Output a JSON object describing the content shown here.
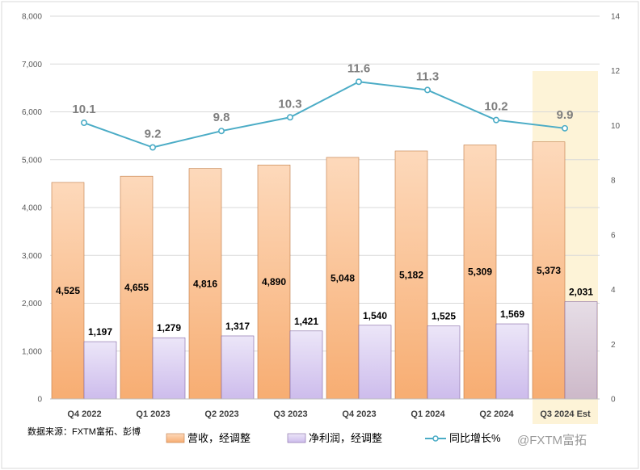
{
  "chart_data": {
    "type": "bar",
    "categories": [
      "Q4 2022",
      "Q1 2023",
      "Q2 2023",
      "Q3 2023",
      "Q4 2023",
      "Q1 2024",
      "Q2 2024",
      "Q3 2024 Est"
    ],
    "series": [
      {
        "name": "营收，经调整",
        "type": "bar",
        "axis": "left",
        "color": "#f8b27a",
        "values": [
          4525,
          4655,
          4816,
          4890,
          5048,
          5182,
          5309,
          5373
        ],
        "labels": [
          "4,525",
          "4,655",
          "4,816",
          "4,890",
          "5,048",
          "5,182",
          "5,309",
          "5,373"
        ]
      },
      {
        "name": "净利润，经调整",
        "type": "bar",
        "axis": "left",
        "color": "#d4c6ef",
        "values": [
          1197,
          1279,
          1317,
          1421,
          1540,
          1525,
          1569,
          2031
        ],
        "labels": [
          "1,197",
          "1,279",
          "1,317",
          "1,421",
          "1,540",
          "1,525",
          "1,569",
          "2,031"
        ]
      },
      {
        "name": "同比增长%",
        "type": "line",
        "axis": "right",
        "color": "#4bacc6",
        "values": [
          10.1,
          9.2,
          9.8,
          10.3,
          11.6,
          11.3,
          10.2,
          9.9
        ],
        "labels": [
          "10.1",
          "9.2",
          "9.8",
          "10.3",
          "11.6",
          "11.3",
          "10.2",
          "9.9"
        ]
      }
    ],
    "y_left": {
      "min": 0,
      "max": 8000,
      "ticks": [
        "0",
        "1,000",
        "2,000",
        "3,000",
        "4,000",
        "5,000",
        "6,000",
        "7,000",
        "8,000"
      ]
    },
    "y_right": {
      "min": 0,
      "max": 14,
      "ticks": [
        "0",
        "2",
        "4",
        "6",
        "8",
        "10",
        "12",
        "14"
      ]
    },
    "highlight_category": "Q3 2024 Est",
    "highlight_color": "#fdf3d7",
    "grid": true,
    "legend_position": "bottom"
  },
  "source_note": "数据来源：FXTM富拓、彭博",
  "watermark": "@FXTM富拓"
}
